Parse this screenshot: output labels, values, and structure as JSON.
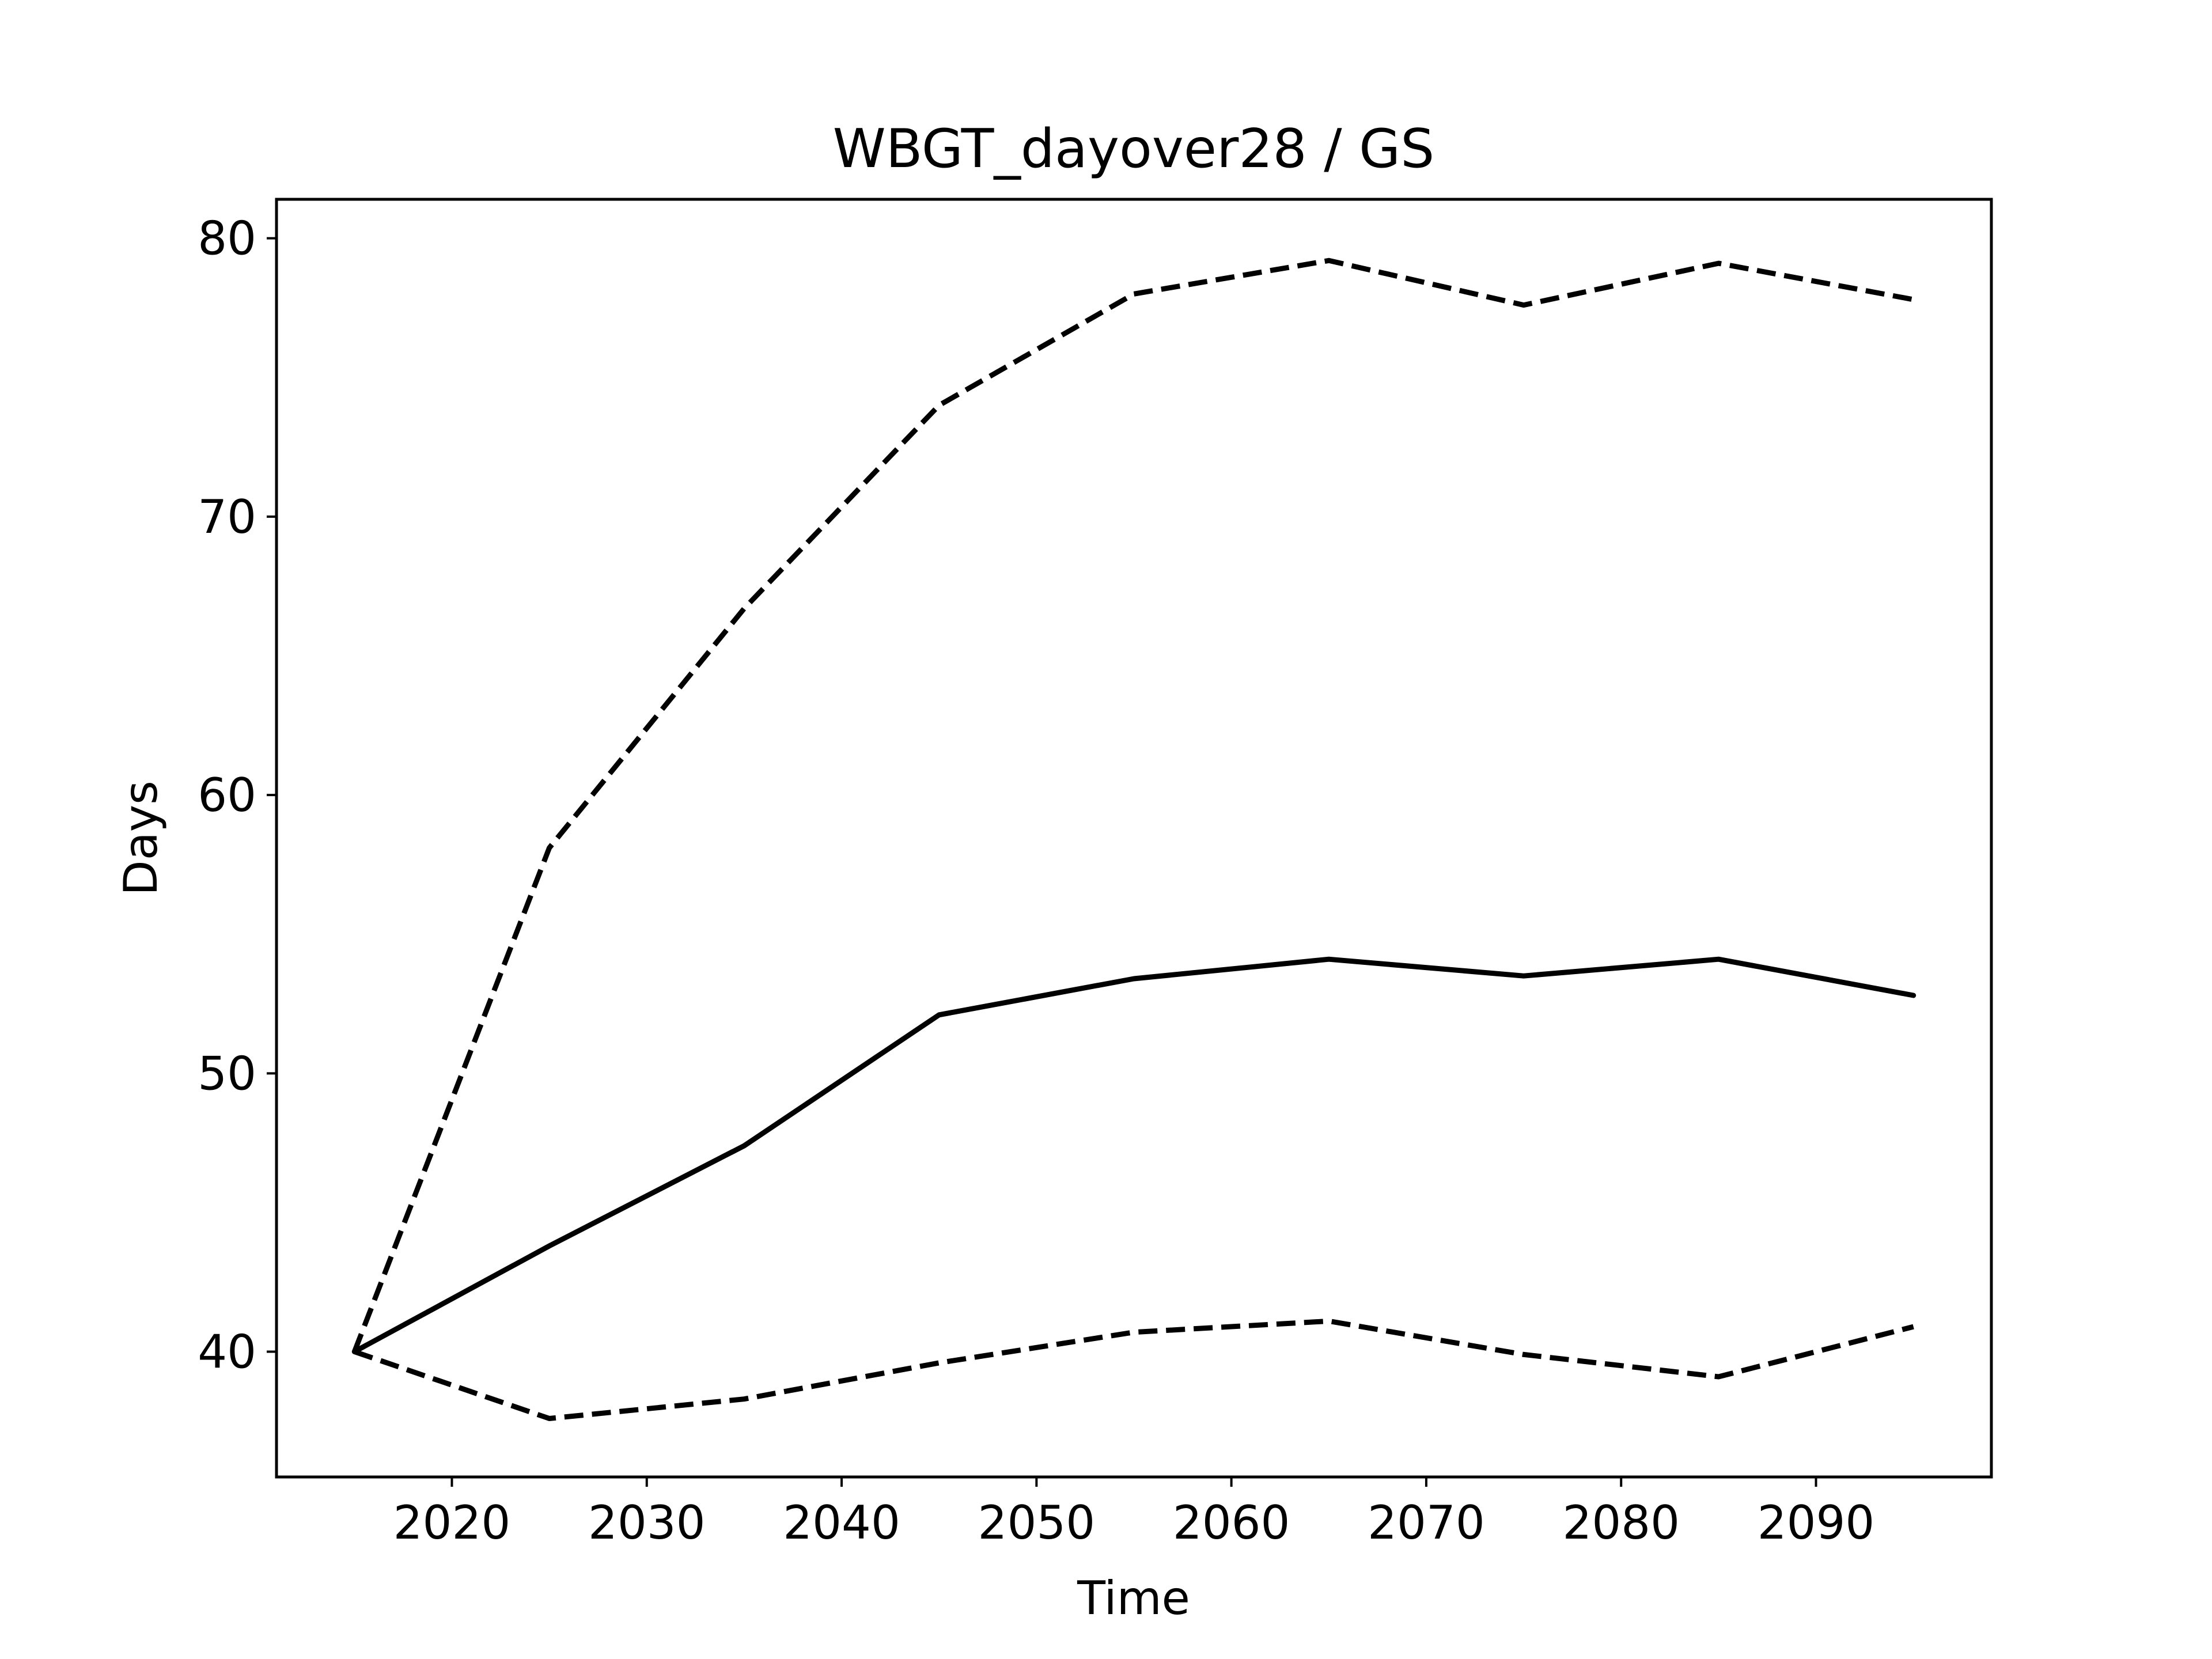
{
  "chart_data": {
    "type": "line",
    "title": "WBGT_dayover28 / GS",
    "xlabel": "Time",
    "ylabel": "Days",
    "xlim": [
      2011,
      2099
    ],
    "ylim": [
      35.5,
      81.4
    ],
    "xticks": [
      2020,
      2030,
      2040,
      2050,
      2060,
      2070,
      2080,
      2090
    ],
    "yticks": [
      40,
      50,
      60,
      70,
      80
    ],
    "grid": false,
    "x": [
      2015,
      2025,
      2035,
      2045,
      2055,
      2065,
      2075,
      2085,
      2095
    ],
    "series": [
      {
        "style": "dashed",
        "color": "#000000",
        "values": [
          40.0,
          58.1,
          66.7,
          74.0,
          78.0,
          79.2,
          77.6,
          79.1,
          77.8
        ]
      },
      {
        "style": "solid",
        "color": "#000000",
        "values": [
          40.0,
          43.8,
          47.4,
          52.1,
          53.4,
          54.1,
          53.5,
          54.1,
          52.8
        ]
      },
      {
        "style": "dashed",
        "color": "#000000",
        "values": [
          40.0,
          37.6,
          38.3,
          39.6,
          40.7,
          41.1,
          39.9,
          39.1,
          40.9
        ]
      }
    ]
  }
}
